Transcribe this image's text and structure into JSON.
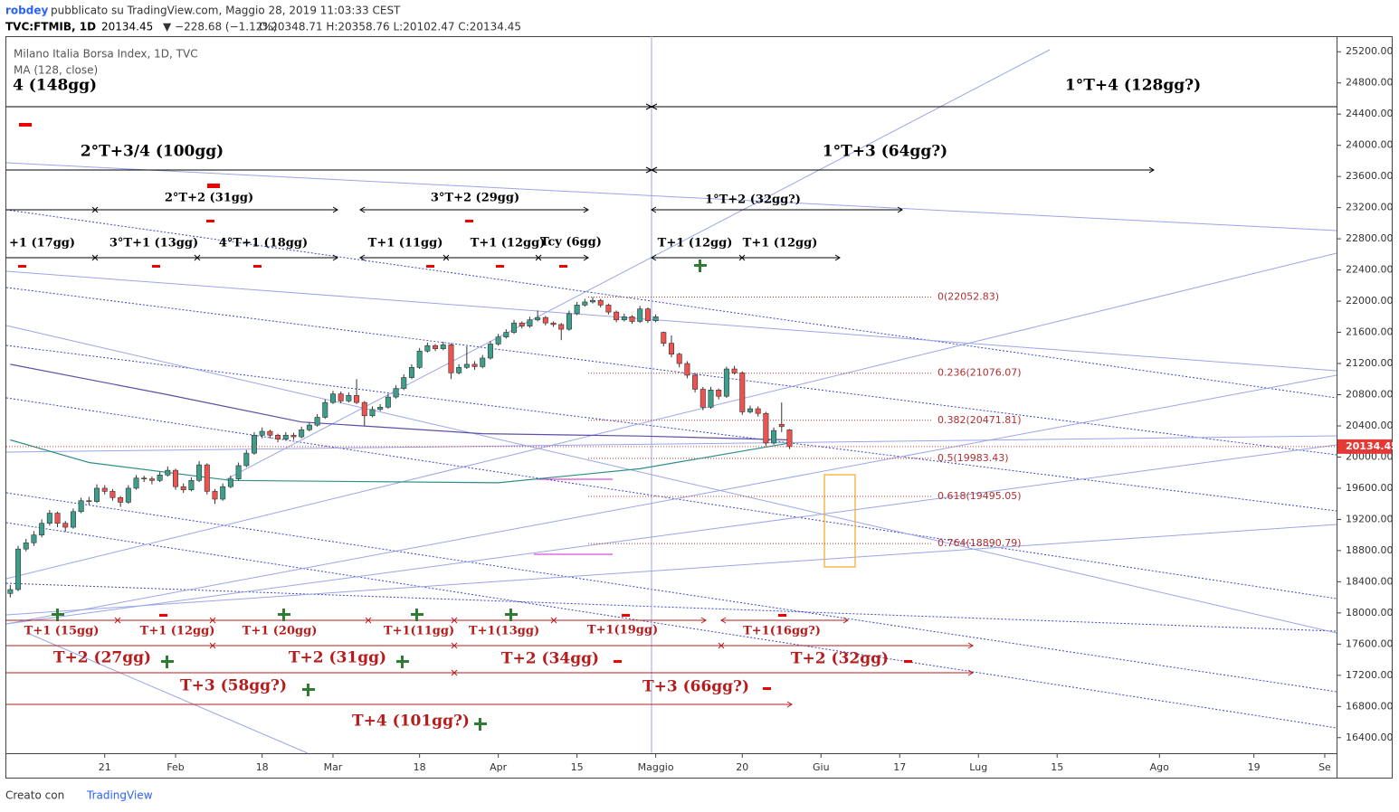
{
  "header": {
    "author": "robdey",
    "published": "pubblicato su TradingView.com, Maggio 28, 2019 11:03:33 CEST",
    "symbol": "TVC:FTMIB, 1D",
    "last": "20134.45",
    "change": "▼ −228.68 (−1.12%)",
    "ohlc": "O:20348.71 H:20358.76 L:20102.47 C:20134.45"
  },
  "footer": {
    "made_with": "Creato con",
    "brand": "TradingView"
  },
  "chart_data": {
    "type": "candlestick",
    "title": "Milano Italia Borsa Index, 1D, TVC",
    "ylim": [
      16200,
      25400
    ],
    "yticks": [
      {
        "value": 16400,
        "label": "16400.00"
      },
      {
        "value": 16800,
        "label": "16800.00"
      },
      {
        "value": 17200,
        "label": "17200.00"
      },
      {
        "value": 17600,
        "label": "17600.00"
      },
      {
        "value": 18000,
        "label": "18000.00"
      },
      {
        "value": 18400,
        "label": "18400.00"
      },
      {
        "value": 18800,
        "label": "18800.00"
      },
      {
        "value": 19200,
        "label": "19200.00"
      },
      {
        "value": 19600,
        "label": "19600.00"
      },
      {
        "value": 20000,
        "label": "20000.00"
      },
      {
        "value": 20400,
        "label": "20400.00"
      },
      {
        "value": 20800,
        "label": "20800.00"
      },
      {
        "value": 21200,
        "label": "21200.00"
      },
      {
        "value": 21600,
        "label": "21600.00"
      },
      {
        "value": 22000,
        "label": "22000.00"
      },
      {
        "value": 22400,
        "label": "22400.00"
      },
      {
        "value": 22800,
        "label": "22800.00"
      },
      {
        "value": 23200,
        "label": "23200.00"
      },
      {
        "value": 23600,
        "label": "23600.00"
      },
      {
        "value": 24000,
        "label": "24000.00"
      },
      {
        "value": 24400,
        "label": "24400.00"
      },
      {
        "value": 24800,
        "label": "24800.00"
      },
      {
        "value": 25200,
        "label": "25200.00"
      }
    ],
    "xlim": [
      -0.5,
      168.5
    ],
    "xticks": [
      {
        "value": 12,
        "label": "21"
      },
      {
        "value": 21,
        "label": "Feb"
      },
      {
        "value": 32,
        "label": "18"
      },
      {
        "value": 41,
        "label": "Mar"
      },
      {
        "value": 52,
        "label": "18"
      },
      {
        "value": 62,
        "label": "Apr"
      },
      {
        "value": 72,
        "label": "15"
      },
      {
        "value": 82,
        "label": "Maggio"
      },
      {
        "value": 93,
        "label": "20"
      },
      {
        "value": 103,
        "label": "Giu"
      },
      {
        "value": 113,
        "label": "17"
      },
      {
        "value": 123,
        "label": "Lug"
      },
      {
        "value": 133,
        "label": "15"
      },
      {
        "value": 146,
        "label": "Ago"
      },
      {
        "value": 158,
        "label": "19"
      },
      {
        "value": 167,
        "label": "Se"
      }
    ],
    "up_color": "#3e9e8c",
    "down_color": "#ef5350",
    "candles": [
      [
        18250,
        18360,
        18200,
        18300
      ],
      [
        18300,
        18860,
        18280,
        18820
      ],
      [
        18820,
        18950,
        18790,
        18900
      ],
      [
        18900,
        19050,
        18860,
        19000
      ],
      [
        19000,
        19200,
        18970,
        19150
      ],
      [
        19150,
        19320,
        19120,
        19280
      ],
      [
        19280,
        19300,
        19100,
        19150
      ],
      [
        19150,
        19180,
        19040,
        19100
      ],
      [
        19100,
        19340,
        19080,
        19300
      ],
      [
        19300,
        19480,
        19280,
        19440
      ],
      [
        19440,
        19490,
        19390,
        19430
      ],
      [
        19430,
        19650,
        19410,
        19600
      ],
      [
        19600,
        19640,
        19520,
        19560
      ],
      [
        19560,
        19590,
        19440,
        19480
      ],
      [
        19480,
        19500,
        19360,
        19420
      ],
      [
        19420,
        19640,
        19400,
        19600
      ],
      [
        19600,
        19770,
        19580,
        19730
      ],
      [
        19730,
        19760,
        19680,
        19720
      ],
      [
        19720,
        19750,
        19650,
        19700
      ],
      [
        19700,
        19810,
        19680,
        19770
      ],
      [
        19770,
        19880,
        19750,
        19830
      ],
      [
        19830,
        19850,
        19580,
        19620
      ],
      [
        19620,
        19660,
        19540,
        19580
      ],
      [
        19580,
        19740,
        19560,
        19700
      ],
      [
        19700,
        19950,
        19680,
        19900
      ],
      [
        19900,
        19920,
        19520,
        19560
      ],
      [
        19560,
        19590,
        19400,
        19460
      ],
      [
        19460,
        19660,
        19440,
        19620
      ],
      [
        19620,
        19760,
        19600,
        19720
      ],
      [
        19720,
        19930,
        19700,
        19890
      ],
      [
        19890,
        20090,
        19870,
        20050
      ],
      [
        20050,
        20320,
        20030,
        20280
      ],
      [
        20280,
        20380,
        20240,
        20330
      ],
      [
        20330,
        20350,
        20240,
        20280
      ],
      [
        20280,
        20300,
        20190,
        20230
      ],
      [
        20230,
        20320,
        20210,
        20280
      ],
      [
        20280,
        20310,
        20220,
        20260
      ],
      [
        20260,
        20390,
        20240,
        20350
      ],
      [
        20350,
        20450,
        20330,
        20410
      ],
      [
        20410,
        20550,
        20390,
        20510
      ],
      [
        20510,
        20740,
        20490,
        20700
      ],
      [
        20700,
        20850,
        20680,
        20810
      ],
      [
        20810,
        20840,
        20690,
        20720
      ],
      [
        20720,
        20830,
        20700,
        20790
      ],
      [
        20790,
        21000,
        20680,
        20700
      ],
      [
        20700,
        20720,
        20400,
        20530
      ],
      [
        20530,
        20650,
        20510,
        20610
      ],
      [
        20610,
        20680,
        20590,
        20640
      ],
      [
        20640,
        20810,
        20620,
        20770
      ],
      [
        20770,
        20920,
        20750,
        20880
      ],
      [
        20880,
        21060,
        20860,
        21020
      ],
      [
        21020,
        21190,
        21000,
        21150
      ],
      [
        21150,
        21400,
        21130,
        21360
      ],
      [
        21360,
        21470,
        21340,
        21430
      ],
      [
        21430,
        21450,
        21360,
        21390
      ],
      [
        21390,
        21480,
        21370,
        21440
      ],
      [
        21440,
        21460,
        21000,
        21080
      ],
      [
        21080,
        21190,
        21060,
        21150
      ],
      [
        21150,
        21420,
        21130,
        21190
      ],
      [
        21190,
        21230,
        21120,
        21160
      ],
      [
        21160,
        21310,
        21140,
        21270
      ],
      [
        21270,
        21490,
        21250,
        21450
      ],
      [
        21450,
        21580,
        21430,
        21540
      ],
      [
        21540,
        21640,
        21520,
        21600
      ],
      [
        21600,
        21760,
        21580,
        21720
      ],
      [
        21720,
        21740,
        21650,
        21680
      ],
      [
        21680,
        21800,
        21660,
        21760
      ],
      [
        21760,
        21880,
        21740,
        21790
      ],
      [
        21790,
        21810,
        21690,
        21720
      ],
      [
        21720,
        21740,
        21670,
        21700
      ],
      [
        21700,
        21720,
        21500,
        21640
      ],
      [
        21640,
        21880,
        21620,
        21840
      ],
      [
        21840,
        21990,
        21820,
        21950
      ],
      [
        21950,
        22030,
        21930,
        21990
      ],
      [
        21990,
        22052.83,
        21970,
        22010
      ],
      [
        22010,
        22030,
        21920,
        21950
      ],
      [
        21950,
        21970,
        21830,
        21860
      ],
      [
        21860,
        21880,
        21730,
        21760
      ],
      [
        21760,
        21840,
        21740,
        21800
      ],
      [
        21800,
        21820,
        21710,
        21740
      ],
      [
        21740,
        21940,
        21720,
        21900
      ],
      [
        21900,
        21920,
        21720,
        21750
      ],
      [
        21750,
        21830,
        21730,
        21800
      ],
      [
        21600,
        21610,
        21420,
        21460
      ],
      [
        21460,
        21560,
        21280,
        21320
      ],
      [
        21320,
        21340,
        21150,
        21200
      ],
      [
        21200,
        21230,
        21010,
        21050
      ],
      [
        21050,
        21080,
        20830,
        20870
      ],
      [
        20870,
        20900,
        20600,
        20640
      ],
      [
        20640,
        20900,
        20620,
        20860
      ],
      [
        20860,
        20880,
        20740,
        20780
      ],
      [
        20780,
        21160,
        20760,
        21130
      ],
      [
        21130,
        21170,
        21060,
        21080
      ],
      [
        21080,
        21100,
        20540,
        20580
      ],
      [
        20580,
        20660,
        20560,
        20620
      ],
      [
        20620,
        20650,
        20520,
        20560
      ],
      [
        20560,
        20580,
        20140,
        20180
      ],
      [
        20180,
        20380,
        20160,
        20340
      ],
      [
        20420,
        20700,
        20320,
        20390
      ],
      [
        20348.71,
        20358.76,
        20102.47,
        20134.45
      ]
    ],
    "ma_lines": [
      {
        "name": "MA (128, close)",
        "color": "#5b4fa8",
        "x": [
          0,
          20,
          37,
          60,
          80,
          99
        ],
        "values": [
          21190,
          20800,
          20450,
          20300,
          20270,
          20220
        ]
      },
      {
        "color": "#2e8f86",
        "x": [
          0,
          10,
          28,
          62,
          80,
          99
        ],
        "values": [
          20220,
          19930,
          19700,
          19670,
          19850,
          20180
        ]
      }
    ],
    "fib": [
      {
        "value": 22052.83,
        "label": "0(22052.83)"
      },
      {
        "value": 21076.07,
        "label": "0.236(21076.07)"
      },
      {
        "value": 20471.81,
        "label": "0.382(20471.81)"
      },
      {
        "value": 19983.43,
        "label": "0.5(19983.43)"
      },
      {
        "value": 19495.05,
        "label": "0.618(19495.05)"
      },
      {
        "value": 18890.79,
        "label": "0.764(18890.79)"
      }
    ],
    "annotations": [
      "4 (148gg)",
      "1°T+4 (128gg?)",
      "2°T+3/4 (100gg)",
      "1°T+3 (64gg?)",
      "2°T+2 (31gg)",
      "3°T+2 (29gg)",
      "1°T+2 (32gg?)",
      "+1 (17gg)",
      "3°T+1 (13gg)",
      "4°T+1 (18gg)",
      "T+1 (11gg)",
      "T+1 (12gg)",
      "Tcy (6gg)",
      "T+1 (12gg)",
      "T+1 (12gg)",
      "T+1 (15gg)",
      "T+1 (12gg)",
      "T+1 (20gg)",
      "T+1(11gg)",
      "T+1(13gg)",
      "T+1(19gg)",
      "T+1(16gg?)",
      "T+2 (27gg)",
      "T+2 (31gg)",
      "T+2 (34gg)",
      "T+2 (32gg)",
      "T+3 (58gg?)",
      "T+3 (66gg?)",
      "T+4 (101gg?)"
    ]
  }
}
